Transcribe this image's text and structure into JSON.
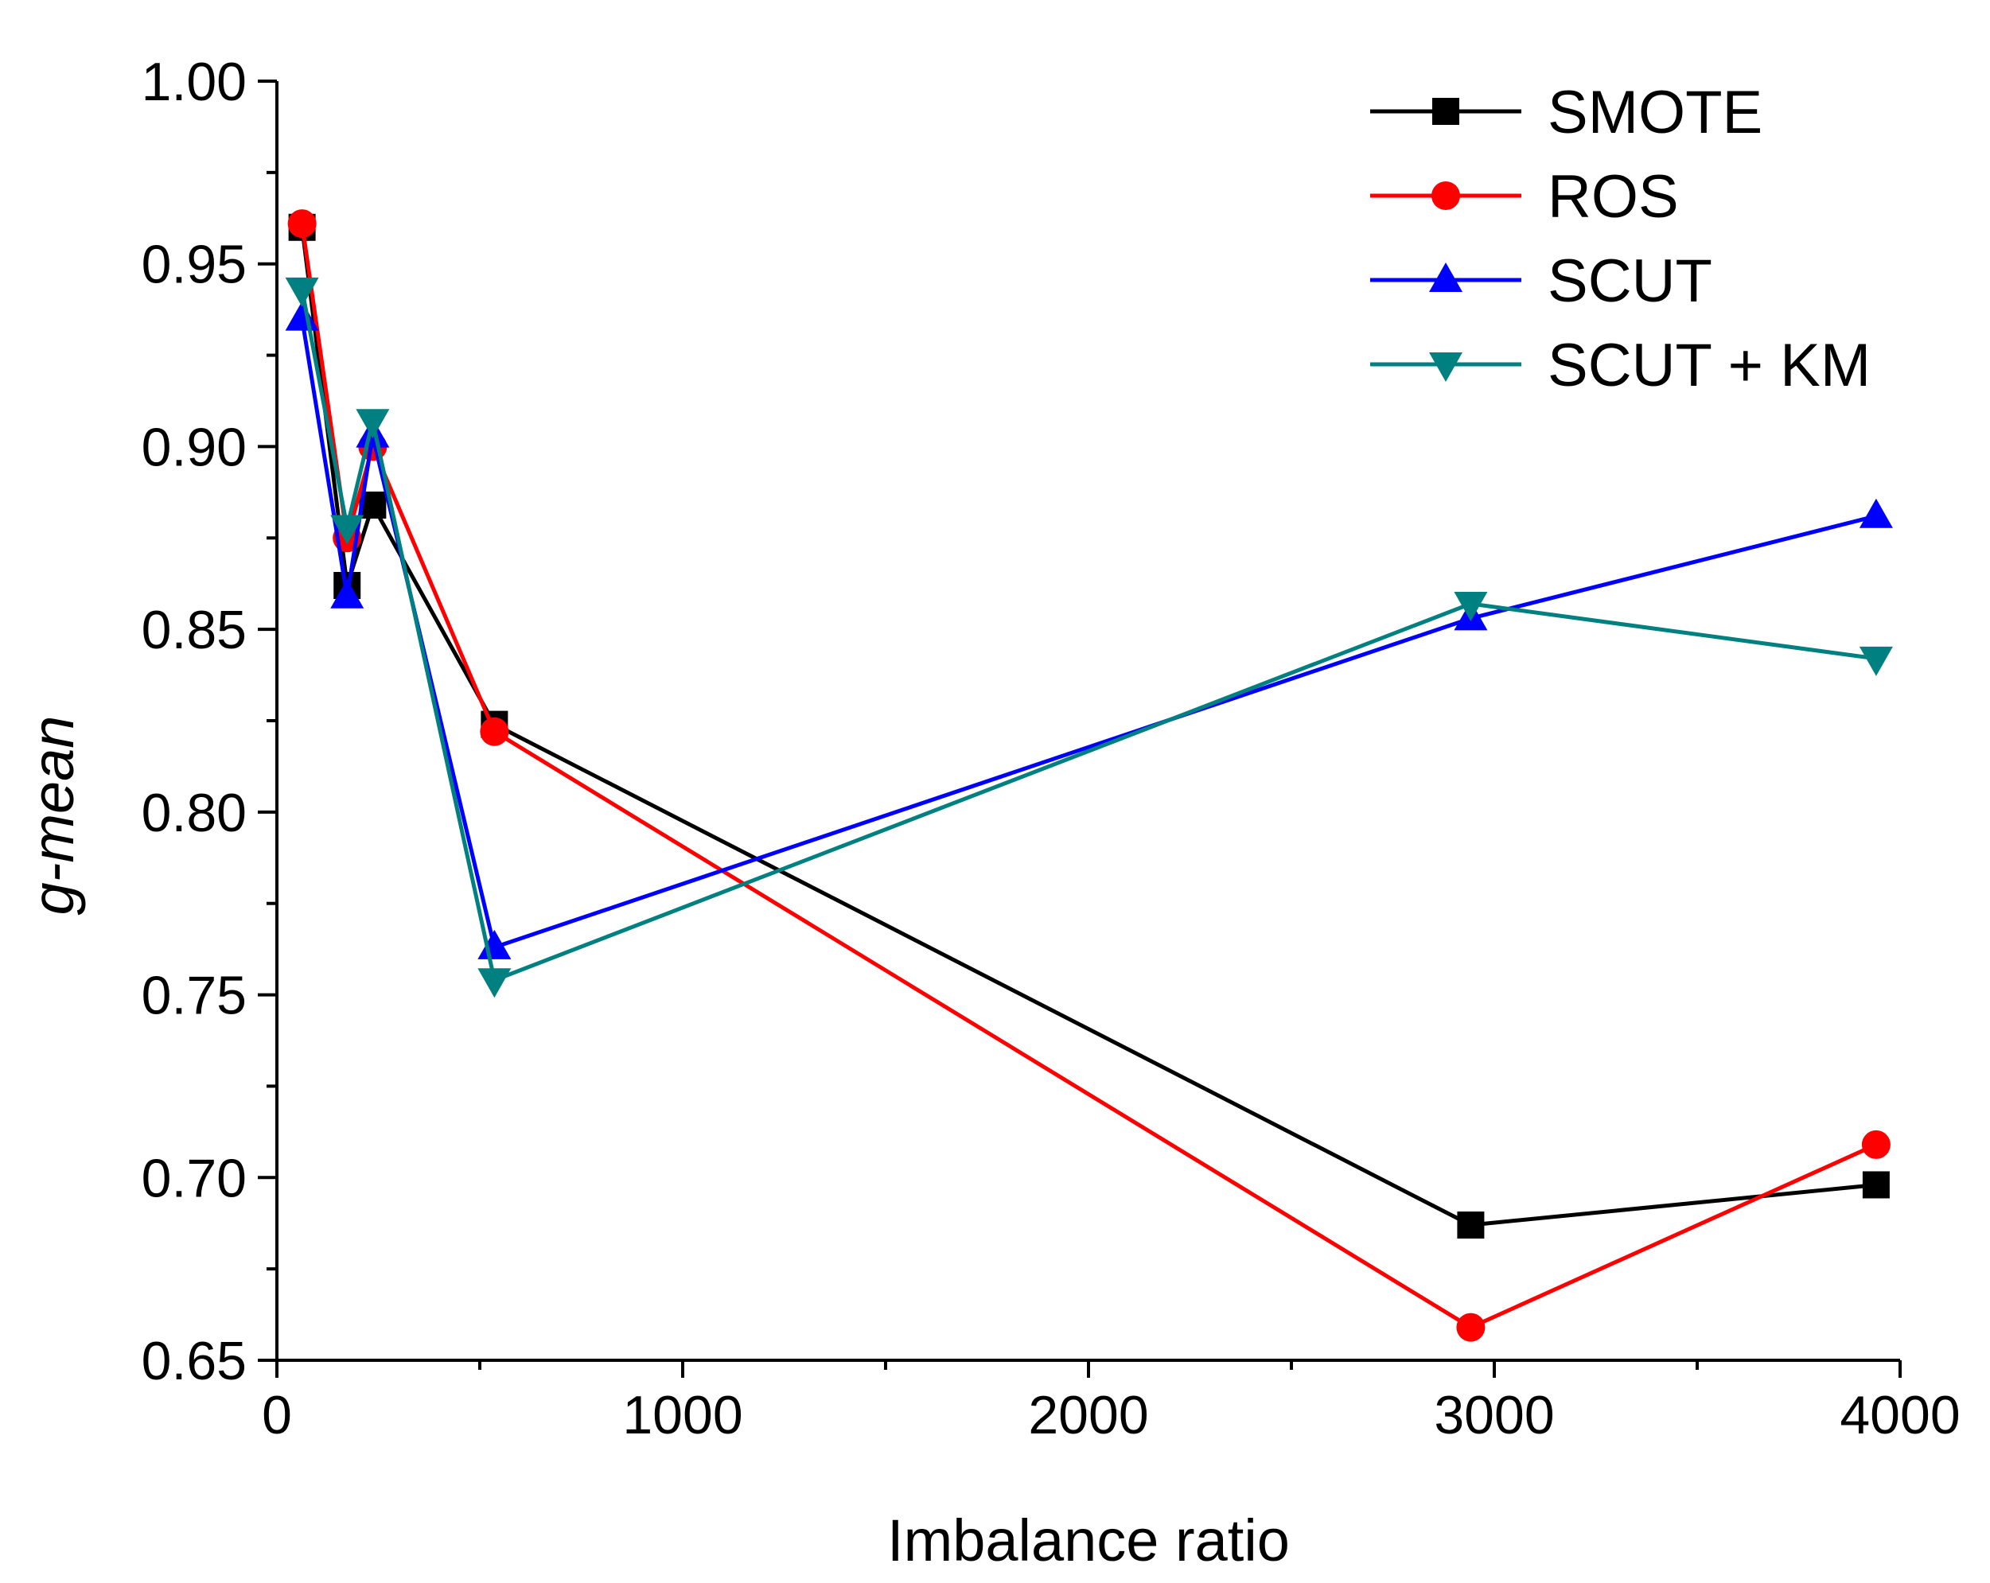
{
  "chart_data": {
    "type": "line",
    "title": "",
    "xlabel": "Imbalance ratio",
    "ylabel": "g-mean",
    "xlim": [
      0,
      4000
    ],
    "ylim": [
      0.65,
      1.0
    ],
    "x_ticks": [
      0,
      1000,
      2000,
      3000,
      4000
    ],
    "x_tick_labels": [
      "0",
      "1000",
      "2000",
      "3000",
      "4000"
    ],
    "x_minor_ticks": [
      500,
      1500,
      2500,
      3500
    ],
    "y_ticks": [
      0.65,
      0.7,
      0.75,
      0.8,
      0.85,
      0.9,
      0.95,
      1.0
    ],
    "y_tick_labels": [
      "0.65",
      "0.70",
      "0.75",
      "0.80",
      "0.85",
      "0.90",
      "0.95",
      "1.00"
    ],
    "y_minor_ticks": [
      0.675,
      0.725,
      0.775,
      0.825,
      0.875,
      0.925,
      0.975
    ],
    "grid": false,
    "legend_position": "top-right",
    "x": [
      62,
      173,
      236,
      536,
      2942,
      3941
    ],
    "series": [
      {
        "name": "SMOTE",
        "color": "#000000",
        "marker": "square",
        "values": [
          0.96,
          0.862,
          0.884,
          0.824,
          0.687,
          0.698
        ]
      },
      {
        "name": "ROS",
        "color": "#ff0000",
        "marker": "circle",
        "values": [
          0.961,
          0.875,
          0.9,
          0.822,
          0.659,
          0.709
        ]
      },
      {
        "name": "SCUT",
        "color": "#0000ff",
        "marker": "triangle-up",
        "values": [
          0.935,
          0.859,
          0.903,
          0.763,
          0.853,
          0.881
        ]
      },
      {
        "name": "SCUT + KM",
        "color": "#008080",
        "marker": "triangle-down",
        "values": [
          0.943,
          0.878,
          0.907,
          0.754,
          0.857,
          0.842
        ]
      }
    ]
  }
}
